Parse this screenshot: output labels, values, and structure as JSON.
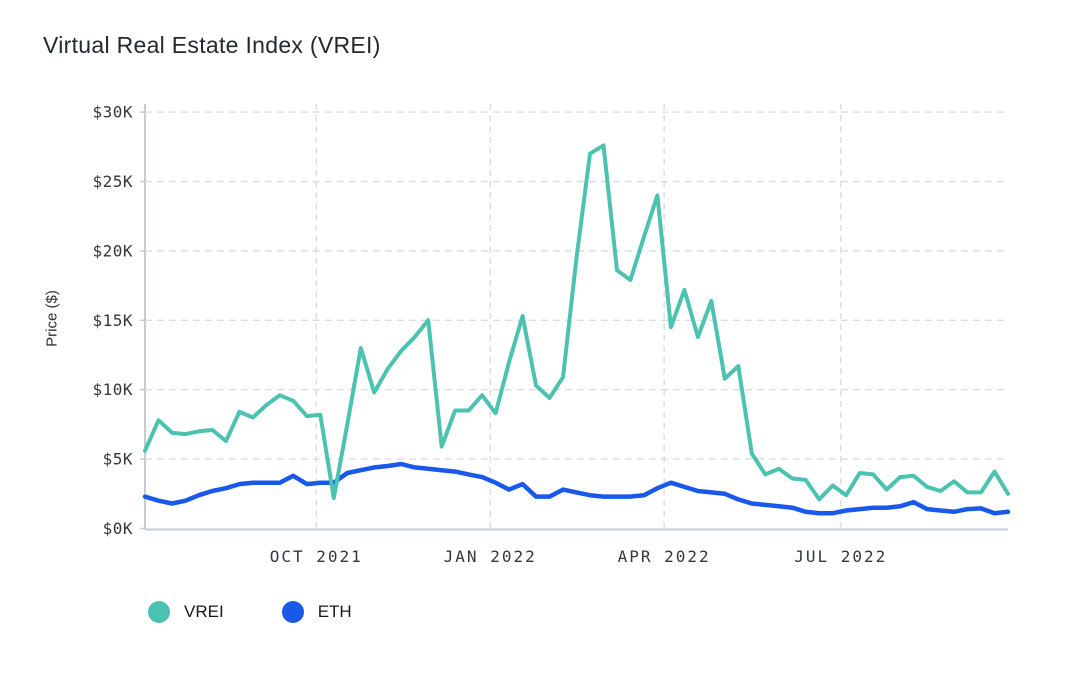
{
  "title": "Virtual Real Estate Index (VREI)",
  "chart_data": {
    "type": "line",
    "title": "Virtual Real Estate Index (VREI)",
    "xlabel": "",
    "ylabel": "Price ($)",
    "ylim": [
      0,
      30000
    ],
    "grid": "dashed",
    "legend_position": "bottom-left",
    "x_unit": "weeks",
    "x_range_weeks": [
      0,
      64
    ],
    "y_ticks": [
      {
        "label": "$0K",
        "value": 0
      },
      {
        "label": "$5K",
        "value": 5000
      },
      {
        "label": "$10K",
        "value": 10000
      },
      {
        "label": "$15K",
        "value": 15000
      },
      {
        "label": "$20K",
        "value": 20000
      },
      {
        "label": "$25K",
        "value": 25000
      },
      {
        "label": "$30K",
        "value": 30000
      }
    ],
    "x_ticks": [
      {
        "label": "OCT 2021",
        "week": 12.7
      },
      {
        "label": "JAN 2022",
        "week": 25.6
      },
      {
        "label": "APR 2022",
        "week": 38.5
      },
      {
        "label": "JUL 2022",
        "week": 51.6
      }
    ],
    "series": [
      {
        "name": "VREI",
        "color": "#4cc2b0",
        "values_usd": [
          5600,
          7800,
          6900,
          6800,
          7000,
          7100,
          6300,
          8400,
          8000,
          8900,
          9600,
          9200,
          8100,
          8200,
          2200,
          7500,
          13000,
          9800,
          11500,
          12800,
          13800,
          15000,
          5900,
          8500,
          8500,
          9600,
          8300,
          12000,
          15300,
          10300,
          9400,
          10900,
          19500,
          27000,
          27600,
          18600,
          17900,
          21000,
          24000,
          14500,
          17200,
          13800,
          16400,
          10800,
          11700,
          5400,
          3900,
          4300,
          3600,
          3500,
          2100,
          3100,
          2400,
          4000,
          3900,
          2800,
          3700,
          3800,
          3000,
          2700,
          3400,
          2600,
          2600,
          4100,
          2500
        ]
      },
      {
        "name": "ETH",
        "color": "#1859e9",
        "values_usd": [
          2300,
          2000,
          1800,
          2000,
          2400,
          2700,
          2900,
          3200,
          3300,
          3300,
          3300,
          3800,
          3200,
          3300,
          3300,
          4000,
          4200,
          4400,
          4500,
          4650,
          4400,
          4300,
          4200,
          4100,
          3900,
          3700,
          3300,
          2800,
          3200,
          2300,
          2300,
          2800,
          2600,
          2400,
          2300,
          2300,
          2300,
          2400,
          2900,
          3300,
          3000,
          2700,
          2600,
          2500,
          2100,
          1800,
          1700,
          1600,
          1500,
          1200,
          1100,
          1100,
          1300,
          1400,
          1500,
          1500,
          1600,
          1900,
          1400,
          1300,
          1200,
          1400,
          1450,
          1100,
          1200
        ]
      }
    ]
  },
  "colors": {
    "axis": "#c6ccd2",
    "gridline": "#d9dde2",
    "title_text": "#24292e",
    "tick_text": "#33383d",
    "vrei": "#4cc2b0",
    "eth": "#1859e9"
  }
}
